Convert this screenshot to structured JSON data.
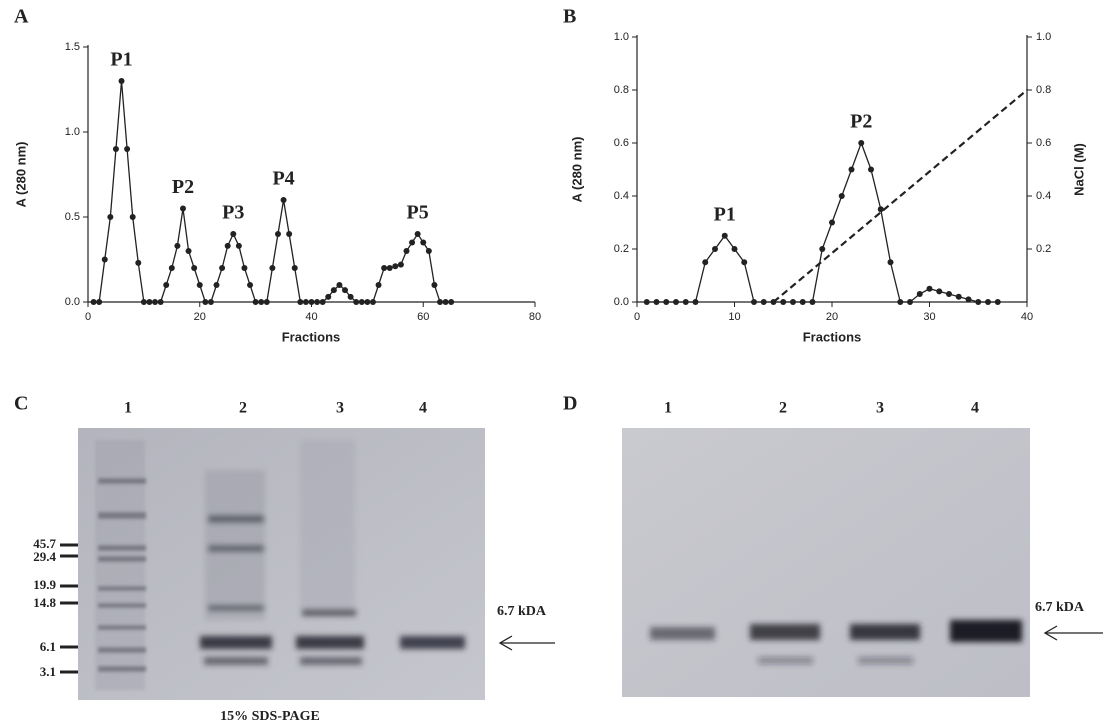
{
  "chart_data": [
    {
      "type": "line",
      "panel": "A",
      "x_label": "Fractions",
      "y_label": "A (280 nm)",
      "xlim": [
        0,
        80
      ],
      "xticks": [
        0,
        20,
        40,
        60,
        80
      ],
      "ylim": [
        0,
        1.5
      ],
      "yticks": [
        {
          "value": 0,
          "label": "0.0"
        },
        0.5,
        {
          "value": 1,
          "label": "1.0"
        },
        1.5
      ],
      "series": [
        {
          "name": "A280",
          "color": "#222222",
          "markers": true,
          "line_style": "solid",
          "x": [
            1,
            2,
            3,
            4,
            5,
            6,
            7,
            8,
            9,
            10,
            11,
            12,
            13,
            14,
            15,
            16,
            17,
            18,
            19,
            20,
            21,
            22,
            23,
            24,
            25,
            26,
            27,
            28,
            29,
            30,
            31,
            32,
            33,
            34,
            35,
            36,
            37,
            38,
            39,
            40,
            41,
            42,
            43,
            44,
            45,
            46,
            47,
            48,
            49,
            50,
            51,
            52,
            53,
            54,
            55,
            56,
            57,
            58,
            59,
            60,
            61,
            62,
            63,
            64,
            65
          ],
          "values": [
            0,
            0,
            0.25,
            0.5,
            0.9,
            1.3,
            0.9,
            0.5,
            0.23,
            0,
            0,
            0,
            0,
            0.1,
            0.2,
            0.33,
            0.55,
            0.3,
            0.2,
            0.1,
            0,
            0,
            0.1,
            0.2,
            0.33,
            0.4,
            0.33,
            0.2,
            0.1,
            0,
            0,
            0,
            0.2,
            0.4,
            0.6,
            0.4,
            0.2,
            0,
            0,
            0,
            0,
            0,
            0.03,
            0.07,
            0.1,
            0.07,
            0.03,
            0,
            0,
            0,
            0,
            0.1,
            0.2,
            0.2,
            0.21,
            0.22,
            0.3,
            0.35,
            0.4,
            0.35,
            0.3,
            0.1,
            0,
            0,
            0
          ]
        }
      ],
      "annotations": [
        {
          "text": "P1",
          "x": 6
        },
        {
          "text": "P2",
          "x": 17
        },
        {
          "text": "P3",
          "x": 26
        },
        {
          "text": "P4",
          "x": 35
        },
        {
          "text": "P5",
          "x": 59
        }
      ]
    },
    {
      "type": "line",
      "panel": "B",
      "x_label": "Fractions",
      "y_label": "A (280 nm)",
      "y2_label": "NaCl (M)",
      "xlim": [
        0,
        40
      ],
      "xticks": [
        0,
        10,
        20,
        30,
        40
      ],
      "ylim": [
        0,
        1
      ],
      "yticks": [
        {
          "value": 0,
          "label": "0.0"
        },
        0.2,
        0.4,
        0.6,
        0.8,
        {
          "value": 1,
          "label": "1.0"
        }
      ],
      "y2lim": [
        0,
        1
      ],
      "y2ticks": [
        0.2,
        0.4,
        0.6,
        0.8,
        {
          "value": 1,
          "label": "1.0"
        }
      ],
      "series": [
        {
          "name": "A280",
          "color": "#222222",
          "markers": true,
          "line_style": "solid",
          "x": [
            1,
            2,
            3,
            4,
            5,
            6,
            7,
            8,
            9,
            10,
            11,
            12,
            13,
            14,
            15,
            16,
            17,
            18,
            19,
            20,
            21,
            22,
            23,
            24,
            25,
            26,
            27,
            28,
            29,
            30,
            31,
            32,
            33,
            34,
            35,
            36,
            37
          ],
          "values": [
            0,
            0,
            0,
            0,
            0,
            0,
            0.15,
            0.2,
            0.25,
            0.2,
            0.15,
            0,
            0,
            0,
            0,
            0,
            0,
            0,
            0.2,
            0.3,
            0.4,
            0.5,
            0.6,
            0.5,
            0.35,
            0.15,
            0,
            0,
            0.03,
            0.05,
            0.04,
            0.03,
            0.02,
            0.01,
            0,
            0,
            0
          ]
        },
        {
          "name": "NaCl",
          "color": "#222222",
          "markers": false,
          "line_style": "dashed",
          "axis": "y2",
          "x": [
            14,
            40
          ],
          "values": [
            0,
            0.8
          ]
        }
      ],
      "annotations": [
        {
          "text": "P1",
          "x": 9
        },
        {
          "text": "P2",
          "x": 23
        }
      ]
    }
  ],
  "gels": [
    {
      "panel": "C",
      "lanes": [
        "1",
        "2",
        "3",
        "4"
      ],
      "markers": [
        "45.7",
        "29.4",
        "19.9",
        "14.8",
        "6.1",
        "3.1"
      ],
      "band_label": "6.7 kDA",
      "caption": "15% SDS-PAGE"
    },
    {
      "panel": "D",
      "lanes": [
        "1",
        "2",
        "3",
        "4"
      ],
      "band_label": "6.7 kDA"
    }
  ]
}
